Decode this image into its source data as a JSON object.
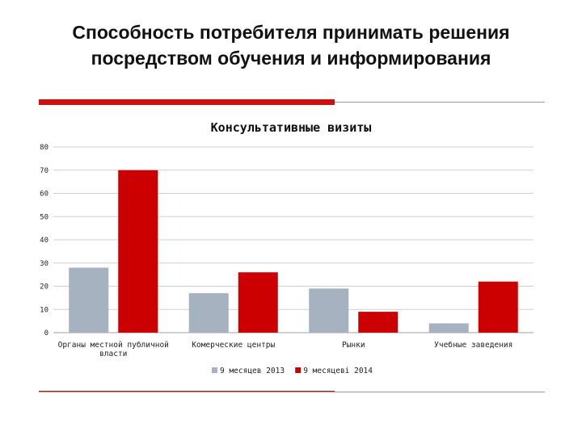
{
  "slide": {
    "title": "Способность потребителя принимать решения посредством обучения и информирования"
  },
  "colors": {
    "accent": "#d10d0d",
    "series_2013": "#a6b2bf",
    "series_2014": "#cc0000",
    "grid": "#d0d0d0"
  },
  "chart_data": {
    "type": "bar",
    "title": "Консультативные визиты",
    "xlabel": "",
    "ylabel": "",
    "ylim": [
      0,
      80
    ],
    "yticks": [
      0,
      10,
      20,
      30,
      40,
      50,
      60,
      70,
      80
    ],
    "grid": true,
    "legend_position": "bottom",
    "categories": [
      [
        "Органы местной публичной",
        "власти"
      ],
      [
        "Комерческие центры"
      ],
      [
        "Рынки"
      ],
      [
        "Учебные заведения"
      ]
    ],
    "series": [
      {
        "name": "9 месяцев 2013",
        "values": [
          28,
          17,
          19,
          4
        ]
      },
      {
        "name": "9 месяцеві 2014",
        "values": [
          70,
          26,
          9,
          22
        ]
      }
    ]
  }
}
